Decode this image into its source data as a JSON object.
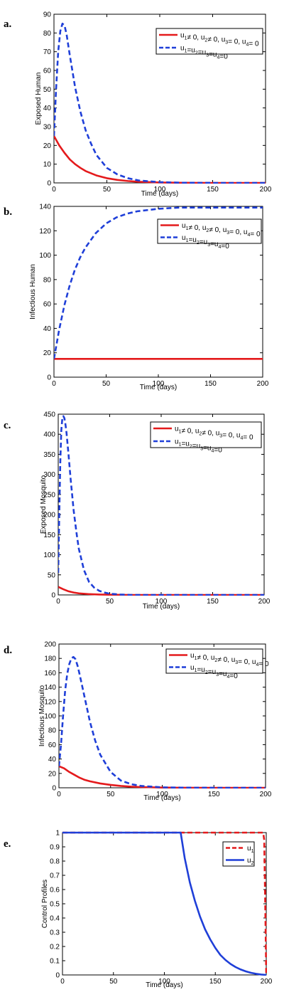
{
  "chart_data": [
    {
      "panel": "a.",
      "type": "line",
      "xlabel": "Time (days)",
      "ylabel": "Exposed Human",
      "xlim": [
        0,
        200
      ],
      "ylim": [
        0,
        90
      ],
      "xticks": [
        0,
        50,
        100,
        150,
        200
      ],
      "yticks": [
        0,
        10,
        20,
        30,
        40,
        50,
        60,
        70,
        80,
        90
      ],
      "legend_position": "top-right",
      "series": [
        {
          "name": "u1≠ 0, u2≠ 0, u3= 0, u4= 0",
          "legend_parts": [
            [
              "u",
              "1"
            ],
            [
              "≠ 0, u",
              "2"
            ],
            [
              "≠ 0, u",
              "3"
            ],
            [
              "= 0, u",
              "4"
            ],
            [
              "= 0",
              ""
            ]
          ],
          "color": "#e41a1c",
          "style": "solid",
          "x": [
            0,
            5,
            10,
            15,
            20,
            25,
            30,
            40,
            50,
            60,
            70,
            80,
            100,
            120,
            150,
            200
          ],
          "y": [
            25,
            20,
            16,
            12.5,
            10,
            8,
            6.3,
            4,
            2.5,
            1.6,
            1,
            0.6,
            0.2,
            0.1,
            0,
            0
          ]
        },
        {
          "name": "u1=u2=u3=u4=0",
          "legend_parts": [
            [
              "u",
              "1"
            ],
            [
              "=u",
              "2"
            ],
            [
              "=u",
              "3"
            ],
            [
              "=u",
              "4"
            ],
            [
              "=0",
              ""
            ]
          ],
          "color": "#1f3fd8",
          "style": "dashed",
          "x": [
            0,
            2,
            4,
            6,
            8,
            10,
            12,
            15,
            20,
            25,
            30,
            35,
            40,
            50,
            60,
            70,
            80,
            100,
            120,
            150,
            200
          ],
          "y": [
            25,
            50,
            70,
            81,
            85,
            84,
            79,
            68,
            51,
            38,
            28,
            21,
            15,
            8,
            4.5,
            2.5,
            1.3,
            0.4,
            0.1,
            0,
            0
          ]
        }
      ]
    },
    {
      "panel": "b.",
      "type": "line",
      "xlabel": "Time (days)",
      "ylabel": "Infectious Human",
      "xlim": [
        0,
        200
      ],
      "ylim": [
        0,
        140
      ],
      "xticks": [
        0,
        50,
        100,
        150,
        200
      ],
      "yticks": [
        0,
        20,
        40,
        60,
        80,
        100,
        120,
        140
      ],
      "legend_position": "top-right",
      "series": [
        {
          "name": "u1≠ 0, u2≠ 0, u3= 0, u4= 0",
          "legend_parts": [
            [
              "u",
              "1"
            ],
            [
              "≠ 0, u",
              "2"
            ],
            [
              "≠ 0, u",
              "3"
            ],
            [
              "= 0, u",
              "4"
            ],
            [
              "= 0",
              ""
            ]
          ],
          "color": "#e41a1c",
          "style": "solid",
          "x": [
            0,
            50,
            100,
            150,
            200
          ],
          "y": [
            15,
            15,
            15,
            15,
            15
          ]
        },
        {
          "name": "u1=u2=u3=u4=0",
          "legend_parts": [
            [
              "u",
              "1"
            ],
            [
              "=u",
              "2"
            ],
            [
              "=u",
              "3"
            ],
            [
              "=u",
              "4"
            ],
            [
              "=0",
              ""
            ]
          ],
          "color": "#1f3fd8",
          "style": "dashed",
          "x": [
            0,
            5,
            10,
            15,
            20,
            25,
            30,
            40,
            50,
            60,
            70,
            80,
            100,
            120,
            150,
            200
          ],
          "y": [
            15,
            39,
            59,
            75,
            88,
            98,
            106,
            118,
            126,
            131,
            134,
            136,
            138,
            139,
            139,
            139
          ]
        }
      ]
    },
    {
      "panel": "c.",
      "type": "line",
      "xlabel": "Time (days)",
      "ylabel": "Exposed Mosquito",
      "xlim": [
        0,
        200
      ],
      "ylim": [
        0,
        450
      ],
      "xticks": [
        0,
        50,
        100,
        150,
        200
      ],
      "yticks": [
        0,
        50,
        100,
        150,
        200,
        250,
        300,
        350,
        400,
        450
      ],
      "legend_position": "top-right",
      "series": [
        {
          "name": "u1≠ 0, u2≠ 0, u3= 0, u4= 0",
          "legend_parts": [
            [
              "u",
              "1"
            ],
            [
              "≠ 0, u",
              "2"
            ],
            [
              "≠ 0, u",
              "3"
            ],
            [
              "= 0, u",
              "4"
            ],
            [
              "= 0",
              ""
            ]
          ],
          "color": "#e41a1c",
          "style": "solid",
          "x": [
            0,
            5,
            10,
            15,
            20,
            30,
            40,
            50,
            70,
            100,
            200
          ],
          "y": [
            20,
            14,
            9,
            6,
            4,
            2,
            1,
            0.5,
            0,
            0,
            0
          ]
        },
        {
          "name": "u1=u2=u3=u4=0",
          "legend_parts": [
            [
              "u",
              "1"
            ],
            [
              "=u",
              "2"
            ],
            [
              "=u",
              "3"
            ],
            [
              "=u",
              "4"
            ],
            [
              "=0",
              ""
            ]
          ],
          "color": "#1f3fd8",
          "style": "dashed",
          "x": [
            0,
            1,
            2,
            3,
            4,
            5,
            6,
            7,
            8,
            10,
            12,
            15,
            18,
            20,
            25,
            30,
            35,
            40,
            45,
            50,
            60,
            70,
            100,
            200
          ],
          "y": [
            55,
            200,
            330,
            410,
            440,
            445,
            440,
            425,
            405,
            350,
            290,
            210,
            150,
            115,
            62,
            32,
            18,
            10,
            6,
            3,
            1,
            0,
            0,
            0
          ]
        }
      ]
    },
    {
      "panel": "d.",
      "type": "line",
      "xlabel": "Time (days)",
      "ylabel": "Infectious Mosquito",
      "xlim": [
        0,
        200
      ],
      "ylim": [
        0,
        200
      ],
      "xticks": [
        0,
        50,
        100,
        150,
        200
      ],
      "yticks": [
        0,
        20,
        40,
        60,
        80,
        100,
        120,
        140,
        160,
        180,
        200
      ],
      "legend_position": "top-right",
      "series": [
        {
          "name": "u1≠ 0, u2≠ 0, u3= 0, u4= 0",
          "legend_parts": [
            [
              "u",
              "1"
            ],
            [
              "≠ 0, u",
              "2"
            ],
            [
              "≠ 0, u",
              "3"
            ],
            [
              "= 0, u",
              "4"
            ],
            [
              "= 0",
              ""
            ]
          ],
          "color": "#e41a1c",
          "style": "solid",
          "x": [
            0,
            5,
            10,
            15,
            20,
            25,
            30,
            40,
            50,
            60,
            70,
            80,
            100,
            120,
            150,
            200
          ],
          "y": [
            30,
            27,
            22,
            18,
            14,
            11,
            9,
            6,
            4,
            2.5,
            1.5,
            1,
            0.3,
            0.1,
            0,
            0
          ]
        },
        {
          "name": "u1=u2=u3=u4=0",
          "legend_parts": [
            [
              "u",
              "1"
            ],
            [
              "=u",
              "2"
            ],
            [
              "=u",
              "3"
            ],
            [
              "=u",
              "4"
            ],
            [
              "=0",
              ""
            ]
          ],
          "color": "#1f3fd8",
          "style": "dashed",
          "x": [
            0,
            2,
            4,
            6,
            8,
            10,
            12,
            14,
            16,
            18,
            20,
            25,
            30,
            35,
            40,
            50,
            60,
            70,
            80,
            100,
            120,
            150,
            200
          ],
          "y": [
            30,
            60,
            100,
            135,
            158,
            172,
            180,
            182,
            179,
            170,
            158,
            125,
            92,
            66,
            46,
            22,
            10,
            5,
            2.5,
            0.6,
            0.2,
            0,
            0
          ]
        }
      ]
    },
    {
      "panel": "e.",
      "type": "line",
      "xlabel": "Time (days)",
      "ylabel": "Control Profiles",
      "xlim": [
        0,
        200
      ],
      "ylim": [
        0,
        1
      ],
      "xticks": [
        0,
        50,
        100,
        150,
        200
      ],
      "yticks": [
        0,
        0.1,
        0.2,
        0.3,
        0.4,
        0.5,
        0.6,
        0.7,
        0.8,
        0.9,
        1
      ],
      "legend_position": "top-right",
      "series": [
        {
          "name": "u1",
          "legend_parts": [
            [
              "u",
              "1"
            ]
          ],
          "color": "#e41a1c",
          "style": "dashed",
          "x": [
            0,
            100,
            196,
            197,
            198,
            199,
            200
          ],
          "y": [
            1,
            1,
            1,
            1,
            0.95,
            0.5,
            0
          ]
        },
        {
          "name": "u2",
          "legend_parts": [
            [
              "u",
              "2"
            ]
          ],
          "color": "#1f3fd8",
          "style": "solid",
          "x": [
            0,
            100,
            116,
            120,
            125,
            130,
            135,
            140,
            145,
            150,
            155,
            160,
            165,
            170,
            175,
            180,
            185,
            190,
            195,
            200
          ],
          "y": [
            1,
            1,
            1,
            0.82,
            0.65,
            0.52,
            0.41,
            0.32,
            0.25,
            0.19,
            0.14,
            0.105,
            0.077,
            0.055,
            0.038,
            0.025,
            0.015,
            0.008,
            0.003,
            0
          ]
        }
      ]
    }
  ]
}
